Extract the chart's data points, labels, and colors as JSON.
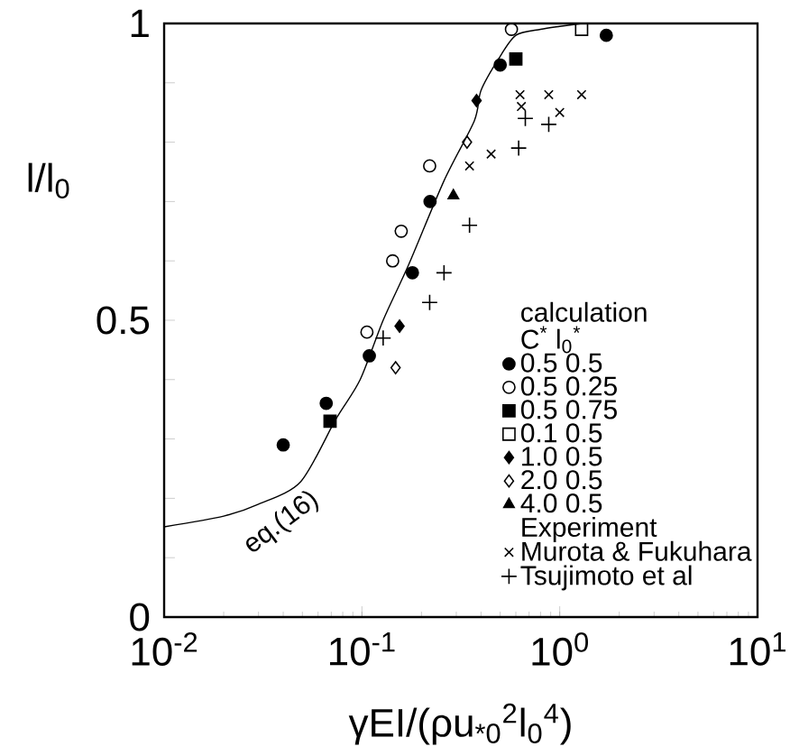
{
  "chart_data": {
    "type": "scatter",
    "xlabel": "γEI/(ρu$_{*0}$$^{2}$l$_{0}$$^{4}$)",
    "ylabel": "l/l$_{0}$",
    "legend_title": "calculation",
    "annotations": [
      "C$^{*}$ l$_{0}$$^{*}$",
      "Experiment"
    ],
    "log": "x",
    "legend": "bottom right",
    "xlim": [
      0.01,
      10
    ],
    "ylim": [
      0,
      1
    ],
    "xticks": [
      {
        "value": 0.01,
        "label": "10$^{-2}$"
      },
      {
        "value": 0.1,
        "label": "10$^{-1}$"
      },
      {
        "value": 1,
        "label": "10$^{0}$"
      },
      {
        "value": 10,
        "label": "10$^{1}$"
      }
    ],
    "yticks": [
      0,
      {
        "value": 0.1,
        "label": null
      },
      {
        "value": 0.2,
        "label": null
      },
      {
        "value": 0.3,
        "label": null
      },
      {
        "value": 0.4,
        "label": null
      },
      0.5,
      {
        "value": 0.6,
        "label": null
      },
      {
        "value": 0.7,
        "label": null
      },
      {
        "value": 0.8,
        "label": null
      },
      {
        "value": 0.9,
        "label": null
      },
      1
    ],
    "series": [
      {
        "name": "0.5 0.5",
        "color": "#000000",
        "marker": "circle",
        "x": [
          0.04,
          0.066,
          0.109,
          0.18,
          0.221,
          0.5,
          1.72
        ],
        "values": [
          0.29,
          0.36,
          0.44,
          0.58,
          0.7,
          0.93,
          0.98
        ]
      },
      {
        "name": "0.5 0.25",
        "color": "#000000",
        "marker": "circle_open",
        "x": [
          0.106,
          0.143,
          0.158,
          0.22,
          0.57
        ],
        "values": [
          0.48,
          0.6,
          0.65,
          0.76,
          0.99
        ]
      },
      {
        "name": "0.5 0.75",
        "color": "#000000",
        "marker": "square",
        "x": [
          0.069,
          0.6
        ],
        "values": [
          0.33,
          0.94
        ]
      },
      {
        "name": "0.1 0.5",
        "color": "#000000",
        "marker": "square_open",
        "x": [
          1.29
        ],
        "values": [
          0.99
        ]
      },
      {
        "name": "1.0 0.5",
        "color": "#000000",
        "marker": "diamond",
        "x": [
          0.155,
          0.38
        ],
        "values": [
          0.49,
          0.87
        ]
      },
      {
        "name": "2.0 0.5",
        "color": "#000000",
        "marker": "diamond_open",
        "x": [
          0.148,
          0.34
        ],
        "values": [
          0.42,
          0.8
        ]
      },
      {
        "name": "4.0 0.5",
        "color": "#000000",
        "marker": "triangle",
        "x": [
          0.29
        ],
        "values": [
          0.71
        ]
      },
      {
        "name": "Murota & Fukuhara",
        "color": "#000000",
        "marker": "cross",
        "x": [
          0.35,
          0.45,
          0.63,
          0.64,
          0.88,
          1.0,
          1.29
        ],
        "values": [
          0.76,
          0.78,
          0.88,
          0.86,
          0.88,
          0.85,
          0.88
        ]
      },
      {
        "name": "Tsujimoto et al",
        "color": "#000000",
        "marker": "plus",
        "x": [
          0.128,
          0.22,
          0.26,
          0.35,
          0.62,
          0.67,
          0.88
        ],
        "values": [
          0.47,
          0.53,
          0.58,
          0.66,
          0.79,
          0.84,
          0.83
        ]
      },
      {
        "name": "eq.(16)",
        "type": "line",
        "color": "#000000",
        "line_style": "solid",
        "marker": "none",
        "x": [
          0.01,
          0.02,
          0.03,
          0.049,
          0.074,
          0.098,
          0.128,
          0.172,
          0.26,
          0.37,
          0.4,
          0.49,
          0.6,
          0.8,
          1.0,
          1.3
        ],
        "values": [
          0.152,
          0.17,
          0.19,
          0.228,
          0.334,
          0.4,
          0.5,
          0.593,
          0.735,
          0.836,
          0.887,
          0.94,
          0.98,
          0.99,
          0.995,
          1.0
        ]
      }
    ]
  }
}
